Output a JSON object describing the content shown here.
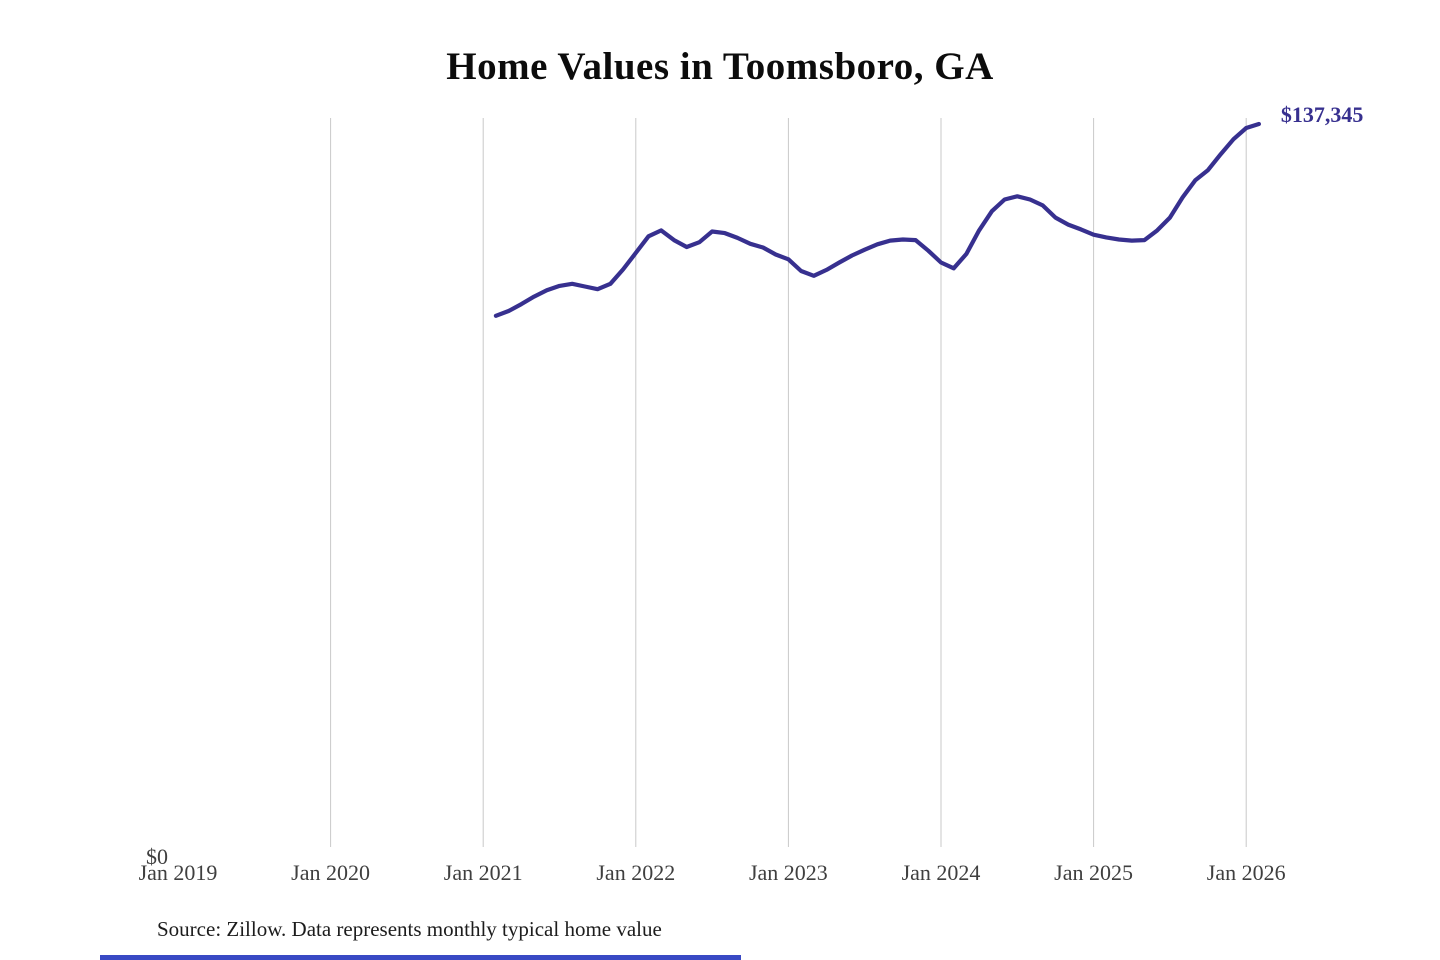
{
  "page": {
    "source_note": "Source: Zillow. Data represents monthly typical home value"
  },
  "chart_data": {
    "type": "line",
    "title": "Home Values in Toomsboro, GA",
    "series_name": "Monthly typical home value",
    "x_tick_labels": [
      "Jan 2019",
      "Jan 2020",
      "Jan 2021",
      "Jan 2022",
      "Jan 2023",
      "Jan 2024",
      "Jan 2025",
      "Jan 2026"
    ],
    "y_zero_label": "$0",
    "end_label": "$137,345",
    "end_value": 137345,
    "ylim": [
      0,
      140000
    ],
    "grid": "vertical-only",
    "legend": "none",
    "x_months": [
      "2021-02",
      "2021-03",
      "2021-04",
      "2021-05",
      "2021-06",
      "2021-07",
      "2021-08",
      "2021-09",
      "2021-10",
      "2021-11",
      "2021-12",
      "2022-01",
      "2022-02",
      "2022-03",
      "2022-04",
      "2022-05",
      "2022-06",
      "2022-07",
      "2022-08",
      "2022-09",
      "2022-10",
      "2022-11",
      "2022-12",
      "2023-01",
      "2023-02",
      "2023-03",
      "2023-04",
      "2023-05",
      "2023-06",
      "2023-07",
      "2023-08",
      "2023-09",
      "2023-10",
      "2023-11",
      "2023-12",
      "2024-01",
      "2024-02",
      "2024-03",
      "2024-04",
      "2024-05",
      "2024-06",
      "2024-07",
      "2024-08",
      "2024-09",
      "2024-10",
      "2024-11",
      "2024-12",
      "2025-01",
      "2025-02",
      "2025-03",
      "2025-04",
      "2025-05",
      "2025-06",
      "2025-07",
      "2025-08",
      "2025-09",
      "2025-10",
      "2025-11",
      "2025-12",
      "2026-01",
      "2026-02"
    ],
    "values": [
      101400,
      102300,
      103600,
      105000,
      106200,
      107000,
      107400,
      106900,
      106400,
      107400,
      110100,
      113200,
      116300,
      117400,
      115600,
      114300,
      115200,
      117200,
      116900,
      116000,
      114900,
      114200,
      112900,
      112000,
      109800,
      108900,
      110000,
      111400,
      112700,
      113800,
      114800,
      115500,
      115700,
      115600,
      113600,
      111400,
      110300,
      113000,
      117400,
      121000,
      123200,
      123800,
      123200,
      122100,
      119800,
      118500,
      117600,
      116600,
      116100,
      115700,
      115500,
      115600,
      117400,
      119800,
      123600,
      126800,
      128700,
      131700,
      134500,
      136600,
      137345
    ],
    "colors": {
      "line": "#37308f",
      "end_label": "#37308f",
      "gridline": "#c9c9c9",
      "tick_label": "#3f3f3f",
      "title": "#0c0c0c",
      "source": "#1c1c1c",
      "bottom_bar": "#3949c4"
    }
  }
}
